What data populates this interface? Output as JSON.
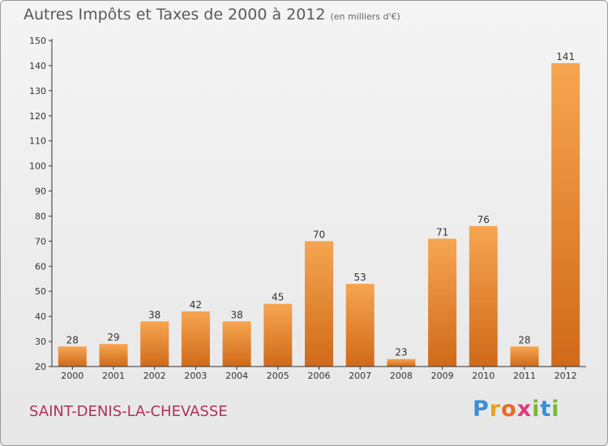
{
  "header": {
    "title": "Autres Impôts et Taxes de 2000 à 2012",
    "unit": "(en milliers d'€)"
  },
  "footer": {
    "commune": "SAINT-DENIS-LA-CHEVASSE",
    "logo": [
      "P",
      "r",
      "o",
      "x",
      "i",
      "t",
      "i"
    ]
  },
  "colors": {
    "bar_light": "#f7a551",
    "bar_dark": "#cf6a1a",
    "axis": "#333333",
    "commune_text": "#b0305f"
  },
  "chart_data": {
    "type": "bar",
    "title": "Autres Impôts et Taxes de 2000 à 2012",
    "subtitle": "(en milliers d'€)",
    "xlabel": "",
    "ylabel": "",
    "categories": [
      "2000",
      "2001",
      "2002",
      "2003",
      "2004",
      "2005",
      "2006",
      "2007",
      "2008",
      "2009",
      "2010",
      "2011",
      "2012"
    ],
    "values": [
      28,
      29,
      38,
      42,
      38,
      45,
      70,
      53,
      23,
      71,
      76,
      28,
      141
    ],
    "ylim": [
      20,
      150
    ],
    "yticks": [
      20,
      30,
      40,
      50,
      60,
      70,
      80,
      90,
      100,
      110,
      120,
      130,
      140,
      150
    ],
    "grid": false,
    "legend": "none"
  }
}
